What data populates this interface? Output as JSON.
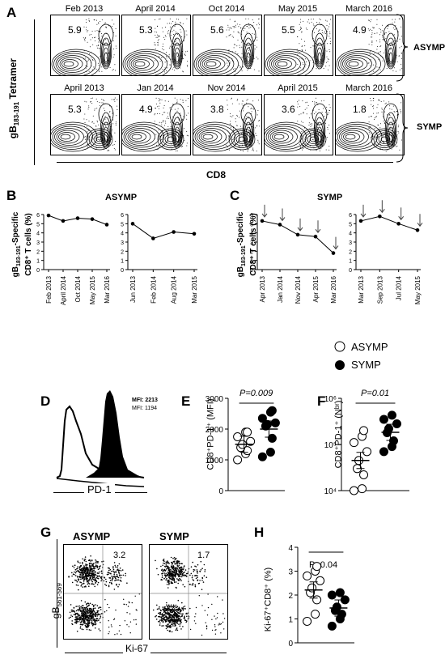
{
  "panelA": {
    "letter": "A",
    "asymp_label": "ASYMP",
    "symp_label": "SYMP",
    "y_label_gB": "gB",
    "y_label_sub": "183-191",
    "y_label_rest": "Tetramer",
    "x_label": "CD8",
    "asymp": [
      {
        "date": "Feb 2013",
        "value": "5.9"
      },
      {
        "date": "April 2014",
        "value": "5.3"
      },
      {
        "date": "Oct 2014",
        "value": "5.6"
      },
      {
        "date": "May 2015",
        "value": "5.5"
      },
      {
        "date": "March 2016",
        "value": "4.9"
      }
    ],
    "symp": [
      {
        "date": "April 2013",
        "value": "5.3"
      },
      {
        "date": "Jan 2014",
        "value": "4.9"
      },
      {
        "date": "Nov 2014",
        "value": "3.8"
      },
      {
        "date": "April 2015",
        "value": "3.6"
      },
      {
        "date": "March 2016",
        "value": "1.8"
      }
    ]
  },
  "panelB": {
    "letter": "B",
    "title": "ASYMP",
    "ylabel_line1": "gB",
    "ylabel_sub": "183-191",
    "ylabel_rest": "-Specific",
    "ylabel_line2": "CD8⁺ T cells (%)"
  },
  "panelC": {
    "letter": "C",
    "title": "SYMP"
  },
  "panelD": {
    "letter": "D",
    "mfi1": "MFI: 2213",
    "mfi2": "MFI: 1194",
    "xlabel": "PD-1"
  },
  "panelE": {
    "letter": "E",
    "pvalue": "P=0.009",
    "ylabel": "CD8⁺PD-1⁺ (MFI)"
  },
  "panelF": {
    "letter": "F",
    "pvalue": "P=0.01",
    "ylabel": "CD8⁺PD-1⁺ (Nᵇʳ)"
  },
  "panelG": {
    "letter": "G",
    "left_title": "ASYMP",
    "right_title": "SYMP",
    "left_value": "3.2",
    "right_value": "1.7",
    "ylabel": "gB",
    "ylabel_sub": "561-569",
    "xlabel": "Ki-67"
  },
  "panelH": {
    "letter": "H",
    "pvalue": "P=0.04",
    "ylabel": "Ki-67⁺CD8⁺ (%)"
  },
  "legend": {
    "asymp": "ASYMP",
    "symp": "SYMP"
  },
  "chart_data": [
    {
      "type": "line",
      "id": "B1",
      "panel": "B",
      "categories": [
        "Feb 2013",
        "April 2014",
        "Oct 2014",
        "May 2015",
        "Mar 2016"
      ],
      "values": [
        5.9,
        5.3,
        5.6,
        5.5,
        4.9
      ],
      "ylim": [
        0,
        6
      ],
      "yticks": [
        0,
        1,
        2,
        3,
        4,
        5,
        6
      ]
    },
    {
      "type": "line",
      "id": "B2",
      "panel": "B",
      "categories": [
        "Jun 2013",
        "Feb 2014",
        "Aug 2014",
        "Mar 2015"
      ],
      "values": [
        5.0,
        3.4,
        4.1,
        3.9
      ],
      "ylim": [
        0,
        6
      ],
      "yticks": [
        0,
        1,
        2,
        3,
        4,
        5,
        6
      ]
    },
    {
      "type": "line",
      "id": "C1",
      "panel": "C",
      "categories": [
        "Apr 2013",
        "Jan 2014",
        "Nov 2014",
        "Apr 2015",
        "Mar 2016"
      ],
      "values": [
        5.3,
        4.9,
        3.8,
        3.6,
        1.8
      ],
      "ylim": [
        0,
        6
      ],
      "yticks": [
        0,
        1,
        2,
        3,
        4,
        5,
        6
      ]
    },
    {
      "type": "line",
      "id": "C2",
      "panel": "C",
      "categories": [
        "Mar 2013",
        "Sep 2013",
        "Jul 2014",
        "May 2015"
      ],
      "values": [
        5.3,
        5.8,
        5.0,
        4.3
      ],
      "ylim": [
        0,
        6
      ],
      "yticks": [
        0,
        1,
        2,
        3,
        4,
        5,
        6
      ]
    },
    {
      "type": "scatter",
      "id": "E",
      "panel": "E",
      "series": [
        {
          "name": "ASYMP",
          "values": [
            1000,
            1200,
            1300,
            1400,
            1500,
            1600,
            1750,
            1900,
            1900
          ]
        },
        {
          "name": "SYMP",
          "values": [
            1100,
            1250,
            1700,
            2100,
            2150,
            2200,
            2350,
            2550,
            2600
          ]
        }
      ],
      "ylim": [
        0,
        3000
      ],
      "yticks": [
        0,
        1000,
        2000,
        3000
      ]
    },
    {
      "type": "scatter",
      "id": "F",
      "panel": "F",
      "series": [
        {
          "name": "ASYMP",
          "values": [
            10000,
            11000,
            22000,
            30000,
            45000,
            70000,
            110000,
            150000,
            200000
          ]
        },
        {
          "name": "SYMP",
          "values": [
            70000,
            90000,
            120000,
            180000,
            220000,
            280000,
            350000,
            430000
          ]
        }
      ],
      "ylim": [
        10000,
        1000000
      ],
      "log": true,
      "ytick_labels": [
        "10⁴",
        "10⁵",
        "10⁶"
      ]
    },
    {
      "type": "scatter",
      "id": "H",
      "panel": "H",
      "series": [
        {
          "name": "ASYMP",
          "values": [
            0.9,
            1.2,
            1.8,
            2.1,
            2.3,
            2.6,
            2.8,
            3.0,
            3.2
          ]
        },
        {
          "name": "SYMP",
          "values": [
            0.7,
            1.0,
            1.2,
            1.35,
            1.5,
            1.8,
            2.0,
            2.1
          ]
        }
      ],
      "ylim": [
        0,
        4
      ],
      "yticks": [
        0,
        1,
        2,
        3,
        4
      ]
    }
  ]
}
